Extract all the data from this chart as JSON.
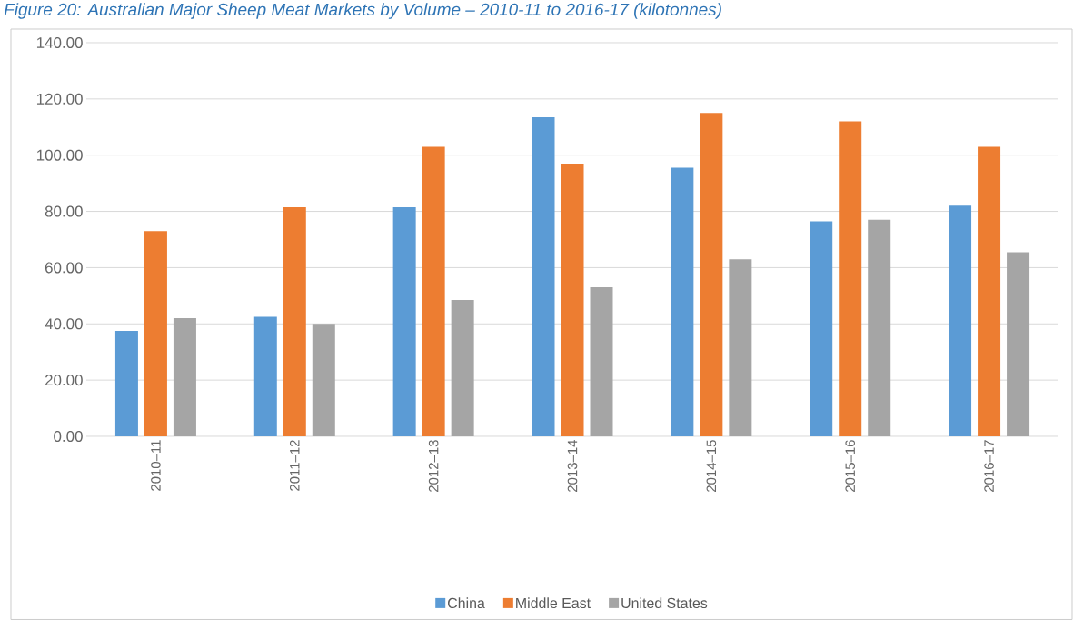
{
  "chart_data": {
    "type": "bar",
    "title": "Figure 20: Australian Major Sheep Meat Markets by Volume – 2010-11 to 2016-17 (kilotonnes)",
    "categories": [
      "2010–11",
      "2011–12",
      "2012–13",
      "2013–14",
      "2014–15",
      "2015–16",
      "2016–17"
    ],
    "series": [
      {
        "name": "China",
        "color": "#5b9bd5",
        "values": [
          37.5,
          42.5,
          81.5,
          113.5,
          95.5,
          76.5,
          82
        ]
      },
      {
        "name": "Middle East",
        "color": "#ed7d31",
        "values": [
          73,
          81.5,
          103,
          97,
          115,
          112,
          103
        ]
      },
      {
        "name": "United States",
        "color": "#a5a5a5",
        "values": [
          42,
          40,
          48.5,
          53,
          63,
          77,
          65.5
        ]
      }
    ],
    "ylim": [
      0,
      140
    ],
    "yticks": [
      {
        "value": 0,
        "label": "0.00"
      },
      {
        "value": 20,
        "label": "20.00"
      },
      {
        "value": 40,
        "label": "40.00"
      },
      {
        "value": 60,
        "label": "60.00"
      },
      {
        "value": 80,
        "label": "80.00"
      },
      {
        "value": 100,
        "label": "100.00"
      },
      {
        "value": 120,
        "label": "120.00"
      },
      {
        "value": 140,
        "label": "140.00"
      }
    ],
    "grid": "y",
    "legend": "bottom"
  }
}
